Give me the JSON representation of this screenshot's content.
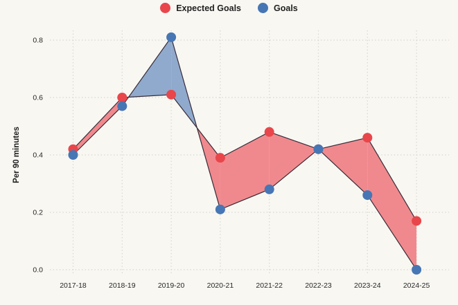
{
  "chart_data": {
    "type": "line",
    "subtype": "difference-area",
    "title": "",
    "xlabel": "",
    "ylabel": "Per 90 minutes",
    "categories": [
      "2017-18",
      "2018-19",
      "2019-20",
      "2020-21",
      "2021-22",
      "2022-23",
      "2023-24",
      "2024-25"
    ],
    "series": [
      {
        "name": "Expected Goals",
        "color": "#e8464b",
        "fill": "#f0898d",
        "values": [
          0.42,
          0.6,
          0.61,
          0.39,
          0.48,
          0.42,
          0.46,
          0.17
        ]
      },
      {
        "name": "Goals",
        "color": "#4776b4",
        "fill": "#90aacd",
        "values": [
          0.4,
          0.57,
          0.81,
          0.21,
          0.28,
          0.42,
          0.26,
          0.0
        ]
      }
    ],
    "ytick_labels": [
      "0.0",
      "0.2",
      "0.4",
      "0.6",
      "0.8"
    ],
    "ylim": [
      0,
      0.88
    ],
    "grid": "dotted",
    "legend_position": "top-center",
    "area_rule": "red where Expected Goals > Goals, blue where Goals > Expected Goals"
  },
  "colors": {
    "background": "#f8f7f2",
    "grid": "#d7d4cd",
    "line": "#372b39",
    "text": "#262626"
  }
}
